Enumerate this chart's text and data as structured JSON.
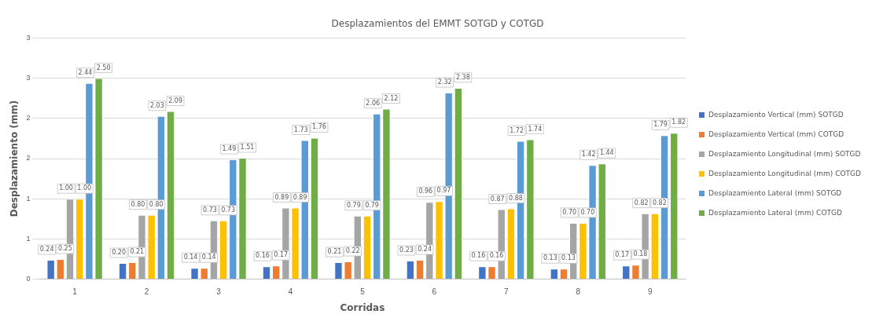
{
  "chart_data": {
    "type": "bar",
    "title": "Desplazamientos del EMMT SOTGD y COTGD",
    "xlabel": "Corridas",
    "ylabel": "Desplazamiento (mm)",
    "categories": [
      "1",
      "2",
      "3",
      "4",
      "5",
      "6",
      "7",
      "8",
      "9"
    ],
    "series": [
      {
        "name": "Desplazamiento Vertical (mm) SOTGD",
        "color": "#4472c4",
        "values": [
          0.24,
          0.2,
          0.14,
          0.16,
          0.21,
          0.23,
          0.16,
          0.13,
          0.17
        ],
        "value_labels": [
          "0.24",
          "0.20",
          "0.14",
          "0.16",
          "0.21",
          "0.23",
          "0.16",
          "0.13",
          "0.17"
        ]
      },
      {
        "name": "Desplazamiento Vertical (mm) COTGD",
        "color": "#ed7d31",
        "values": [
          0.25,
          0.21,
          0.14,
          0.17,
          0.22,
          0.24,
          0.16,
          0.13,
          0.18
        ],
        "value_labels": [
          "0.25",
          "0.21",
          "0.14",
          "0.17",
          "0.22",
          "0.24",
          "0.16",
          "0.13",
          "0.18"
        ]
      },
      {
        "name": "Desplazamiento Longitudinal (mm) SOTGD",
        "color": "#a5a5a5",
        "values": [
          1.0,
          0.8,
          0.73,
          0.89,
          0.79,
          0.96,
          0.87,
          0.7,
          0.82
        ],
        "value_labels": [
          "1.00",
          "0.80",
          "0.73",
          "0.89",
          "0.79",
          "0.96",
          "0.87",
          "0.70",
          "0.82"
        ]
      },
      {
        "name": "Desplazamiento Longitudinal (mm) COTGD",
        "color": "#ffc000",
        "values": [
          1.0,
          0.8,
          0.73,
          0.89,
          0.79,
          0.97,
          0.88,
          0.7,
          0.82
        ],
        "value_labels": [
          "1.00",
          "0.80",
          "0.73",
          "0.89",
          "0.79",
          "0.97",
          "0.88",
          "0.70",
          "0.82"
        ]
      },
      {
        "name": "Desplazamiento Lateral (mm) SOTGD",
        "color": "#5b9bd5",
        "values": [
          2.44,
          2.03,
          1.49,
          1.73,
          2.06,
          2.32,
          1.72,
          1.42,
          1.79
        ],
        "value_labels": [
          "2.44",
          "2.03",
          "1.49",
          "1.73",
          "2.06",
          "2.32",
          "1.72",
          "1.42",
          "1.79"
        ]
      },
      {
        "name": "Desplazamiento Lateral (mm) COTGD",
        "color": "#70ad47",
        "values": [
          2.5,
          2.09,
          1.51,
          1.76,
          2.12,
          2.38,
          1.74,
          1.44,
          1.82
        ],
        "value_labels": [
          "2.50",
          "2.09",
          "1.51",
          "1.76",
          "2.12",
          "2.38",
          "1.74",
          "1.44",
          "1.82"
        ]
      }
    ],
    "ylim": [
      0,
      3
    ],
    "yticks": [
      0,
      {
        "value": 0.5,
        "label": "1"
      },
      1,
      {
        "value": 1.5,
        "label": "2"
      },
      2,
      {
        "value": 2.5,
        "label": "3"
      },
      3
    ],
    "grid": "y",
    "legend": "right"
  }
}
